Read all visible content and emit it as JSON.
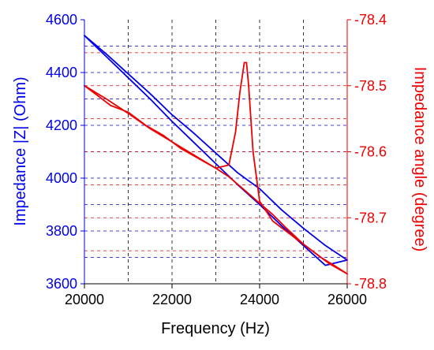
{
  "chart_data": {
    "type": "line",
    "xlabel": "Frequency (Hz)",
    "ylabel_left": "Impedance |Z| (Ohm)",
    "ylabel_right": "Impedance angle (degree)",
    "xlim": [
      20000,
      26000
    ],
    "ylim_left": [
      3600,
      4600
    ],
    "ylim_right": [
      -78.8,
      -78.4
    ],
    "x_ticks": [
      20000,
      22000,
      24000,
      26000
    ],
    "x_tick_labels": [
      "20000",
      "22000",
      "24000",
      "26000"
    ],
    "y_left_ticks": [
      3600,
      3800,
      4000,
      4200,
      4400,
      4600
    ],
    "y_left_tick_labels": [
      "3600",
      "3800",
      "4000",
      "4200",
      "4400",
      "4600"
    ],
    "y_right_ticks": [
      -78.8,
      -78.7,
      -78.6,
      -78.5,
      -78.4
    ],
    "y_right_tick_labels": [
      "-78.8",
      "-78.7",
      "-78.6",
      "-78.5",
      "-78.4"
    ],
    "grid": true,
    "colors": {
      "left_axis": "#0000ee",
      "right_axis": "#ee0000",
      "grid_x": "#333333"
    },
    "series": [
      {
        "axis": "left",
        "color": "#0000ee",
        "x": [
          20000,
          20500,
          21000,
          21500,
          22000,
          22500,
          23000,
          23500,
          24000,
          24500,
          25000,
          25500,
          26000
        ],
        "y": [
          4540,
          4470,
          4395,
          4320,
          4240,
          4170,
          4095,
          4020,
          3960,
          3880,
          3810,
          3745,
          3690
        ]
      },
      {
        "axis": "left",
        "color": "#0000ee",
        "x": [
          20000,
          20500,
          21000,
          21500,
          22000,
          22500,
          23000,
          23500,
          24000,
          24500,
          25000,
          25500,
          26000
        ],
        "y": [
          4540,
          4460,
          4380,
          4300,
          4215,
          4135,
          4055,
          3975,
          3900,
          3820,
          3745,
          3670,
          3690
        ]
      },
      {
        "axis": "right",
        "color": "#ee0000",
        "x": [
          20000,
          20300,
          20600,
          21000,
          21400,
          21800,
          22200,
          22600,
          23000,
          23300,
          23450,
          23550,
          23650,
          23700,
          23750,
          23850,
          24000,
          24300,
          24600,
          25000,
          25300,
          25600,
          26000
        ],
        "y": [
          -78.5,
          -78.515,
          -78.53,
          -78.54,
          -78.56,
          -78.575,
          -78.595,
          -78.61,
          -78.625,
          -78.62,
          -78.57,
          -78.51,
          -78.465,
          -78.465,
          -78.5,
          -78.6,
          -78.675,
          -78.705,
          -78.72,
          -78.74,
          -78.755,
          -78.77,
          -78.785
        ]
      },
      {
        "axis": "right",
        "color": "#ee0000",
        "x": [
          20000,
          20500,
          21000,
          21500,
          22000,
          22500,
          23000,
          23300,
          23600,
          24000,
          24300,
          24600,
          25000,
          25400,
          25700,
          26000
        ],
        "y": [
          -78.5,
          -78.52,
          -78.542,
          -78.565,
          -78.585,
          -78.605,
          -78.625,
          -78.638,
          -78.655,
          -78.678,
          -78.695,
          -78.715,
          -78.74,
          -78.76,
          -78.772,
          -78.785
        ]
      }
    ]
  }
}
